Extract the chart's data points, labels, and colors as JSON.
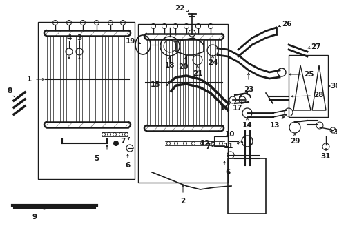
{
  "fig_width": 4.89,
  "fig_height": 3.6,
  "bg_color": "#ffffff",
  "line_color": "#1a1a1a"
}
